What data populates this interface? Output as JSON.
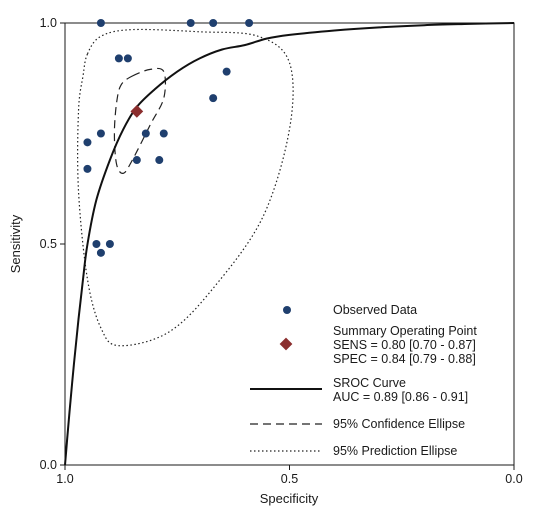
{
  "chart_data": {
    "type": "scatter",
    "title": "",
    "xlabel": "Specificity",
    "ylabel": "Sensitivity",
    "x_reversed": true,
    "xlim": [
      1.0,
      0.0
    ],
    "ylim": [
      0.0,
      1.0
    ],
    "x_ticks": [
      {
        "value": 1.0,
        "label": "1.0"
      },
      {
        "value": 0.5,
        "label": "0.5"
      },
      {
        "value": 0.0,
        "label": "0.0"
      }
    ],
    "y_ticks": [
      {
        "value": 0.0,
        "label": "0.0"
      },
      {
        "value": 0.5,
        "label": "0.5"
      },
      {
        "value": 1.0,
        "label": "1.0"
      }
    ],
    "grid": false,
    "legend_position": "bottom-right",
    "observed_data": {
      "name": "Observed Data",
      "color": "#1f3f6e",
      "points": [
        {
          "spec": 0.92,
          "sens": 1.0
        },
        {
          "spec": 0.72,
          "sens": 1.0
        },
        {
          "spec": 0.67,
          "sens": 1.0
        },
        {
          "spec": 0.59,
          "sens": 1.0
        },
        {
          "spec": 0.88,
          "sens": 0.92
        },
        {
          "spec": 0.86,
          "sens": 0.92
        },
        {
          "spec": 0.64,
          "sens": 0.89
        },
        {
          "spec": 0.67,
          "sens": 0.83
        },
        {
          "spec": 0.92,
          "sens": 0.75
        },
        {
          "spec": 0.82,
          "sens": 0.75
        },
        {
          "spec": 0.78,
          "sens": 0.75
        },
        {
          "spec": 0.95,
          "sens": 0.73
        },
        {
          "spec": 0.84,
          "sens": 0.69
        },
        {
          "spec": 0.79,
          "sens": 0.69
        },
        {
          "spec": 0.95,
          "sens": 0.67
        },
        {
          "spec": 0.93,
          "sens": 0.5
        },
        {
          "spec": 0.9,
          "sens": 0.5
        },
        {
          "spec": 0.92,
          "sens": 0.48
        }
      ]
    },
    "summary_point": {
      "name": "Summary Operating Point",
      "sens_label": "SENS = 0.80 [0.70 - 0.87]",
      "spec_label": "SPEC = 0.84 [0.79 - 0.88]",
      "spec": 0.84,
      "sens": 0.8,
      "color": "#8b2e2e"
    },
    "sroc_curve": {
      "name": "SROC Curve",
      "auc_label": "AUC = 0.89 [0.86 - 0.91]",
      "points": [
        [
          1.0,
          0.0
        ],
        [
          0.995,
          0.06
        ],
        [
          0.99,
          0.12
        ],
        [
          0.98,
          0.23
        ],
        [
          0.97,
          0.33
        ],
        [
          0.96,
          0.42
        ],
        [
          0.95,
          0.5
        ],
        [
          0.93,
          0.6
        ],
        [
          0.9,
          0.69
        ],
        [
          0.87,
          0.76
        ],
        [
          0.84,
          0.81
        ],
        [
          0.8,
          0.85
        ],
        [
          0.75,
          0.89
        ],
        [
          0.7,
          0.92
        ],
        [
          0.65,
          0.94
        ],
        [
          0.6,
          0.95
        ],
        [
          0.55,
          0.965
        ],
        [
          0.5,
          0.973
        ],
        [
          0.4,
          0.983
        ],
        [
          0.3,
          0.99
        ],
        [
          0.2,
          0.995
        ],
        [
          0.1,
          0.998
        ],
        [
          0.0,
          1.0
        ]
      ]
    },
    "confidence_ellipse": {
      "name": "95% Confidence Ellipse",
      "outline": [
        [
          0.85,
          0.88
        ],
        [
          0.81,
          0.895
        ],
        [
          0.78,
          0.89
        ],
        [
          0.78,
          0.83
        ],
        [
          0.81,
          0.77
        ],
        [
          0.85,
          0.69
        ],
        [
          0.87,
          0.66
        ],
        [
          0.885,
          0.68
        ],
        [
          0.89,
          0.75
        ],
        [
          0.885,
          0.82
        ],
        [
          0.875,
          0.86
        ]
      ]
    },
    "prediction_ellipse": {
      "name": "95% Prediction Ellipse",
      "outline": [
        [
          0.95,
          0.93
        ],
        [
          0.92,
          0.97
        ],
        [
          0.85,
          0.985
        ],
        [
          0.7,
          0.98
        ],
        [
          0.57,
          0.97
        ],
        [
          0.5,
          0.91
        ],
        [
          0.5,
          0.76
        ],
        [
          0.56,
          0.56
        ],
        [
          0.67,
          0.4
        ],
        [
          0.77,
          0.3
        ],
        [
          0.88,
          0.27
        ],
        [
          0.92,
          0.31
        ],
        [
          0.95,
          0.42
        ],
        [
          0.97,
          0.62
        ],
        [
          0.97,
          0.8
        ],
        [
          0.96,
          0.88
        ]
      ]
    }
  }
}
